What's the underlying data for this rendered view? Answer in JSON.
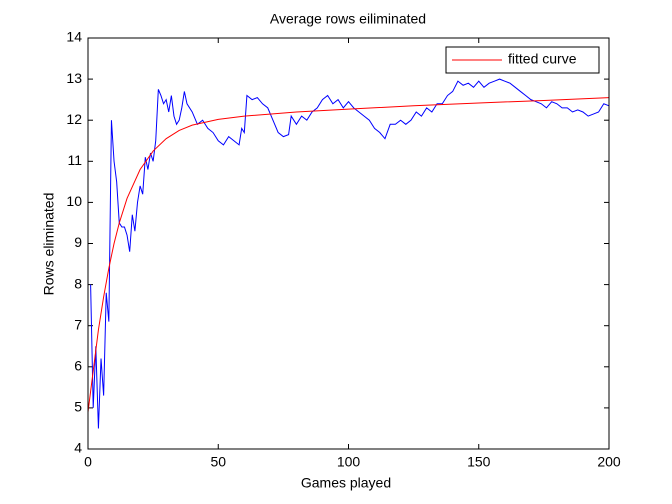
{
  "chart_data": {
    "type": "line",
    "title": "Average rows eiliminated",
    "x_label": "Games played",
    "y_label": "Rows eliminated",
    "xlim": [
      0,
      200
    ],
    "xticks": [
      0,
      50,
      100,
      150,
      200
    ],
    "ylim": [
      4,
      14
    ],
    "yticks": [
      4,
      5,
      6,
      7,
      8,
      9,
      10,
      11,
      12,
      13,
      14
    ],
    "grid": false,
    "legend": "upper right",
    "series": [
      {
        "color": "#0000ff",
        "x": [
          1,
          2,
          3,
          4,
          5,
          6,
          7,
          8,
          9,
          10,
          11,
          12,
          13,
          14,
          15,
          16,
          17,
          18,
          19,
          20,
          21,
          22,
          23,
          24,
          25,
          26,
          27,
          28,
          29,
          30,
          31,
          32,
          33,
          34,
          35,
          36,
          37,
          38,
          40,
          42,
          44,
          46,
          48,
          50,
          52,
          54,
          56,
          58,
          59,
          60,
          61,
          63,
          65,
          67,
          69,
          71,
          73,
          75,
          77,
          78,
          80,
          82,
          84,
          86,
          88,
          90,
          92,
          94,
          96,
          98,
          100,
          102,
          104,
          106,
          108,
          110,
          112,
          114,
          116,
          118,
          120,
          122,
          124,
          126,
          128,
          130,
          132,
          134,
          136,
          138,
          140,
          142,
          144,
          146,
          148,
          150,
          152,
          154,
          156,
          158,
          160,
          162,
          164,
          166,
          168,
          170,
          172,
          174,
          176,
          178,
          180,
          182,
          184,
          186,
          188,
          190,
          192,
          194,
          196,
          198,
          200
        ],
        "values": [
          8.0,
          5.0,
          6.5,
          4.5,
          6.2,
          5.3,
          7.8,
          7.1,
          12.0,
          11.0,
          10.5,
          9.5,
          9.4,
          9.4,
          9.2,
          8.8,
          9.7,
          9.3,
          10.0,
          10.4,
          10.2,
          11.1,
          10.8,
          11.2,
          11.0,
          11.5,
          12.75,
          12.6,
          12.4,
          12.5,
          12.2,
          12.6,
          12.1,
          11.9,
          12.0,
          12.3,
          12.7,
          12.4,
          12.2,
          11.9,
          12.0,
          11.8,
          11.7,
          11.5,
          11.4,
          11.6,
          11.5,
          11.4,
          11.8,
          11.7,
          12.6,
          12.5,
          12.55,
          12.4,
          12.3,
          12.0,
          11.7,
          11.6,
          11.65,
          12.1,
          11.9,
          12.1,
          12.0,
          12.2,
          12.3,
          12.5,
          12.6,
          12.4,
          12.5,
          12.3,
          12.45,
          12.3,
          12.2,
          12.1,
          12.0,
          11.8,
          11.7,
          11.55,
          11.9,
          11.9,
          12.0,
          11.9,
          12.0,
          12.2,
          12.1,
          12.3,
          12.2,
          12.4,
          12.4,
          12.6,
          12.7,
          12.95,
          12.85,
          12.9,
          12.8,
          12.95,
          12.8,
          12.9,
          12.95,
          13.0,
          12.95,
          12.9,
          12.8,
          12.7,
          12.6,
          12.5,
          12.45,
          12.4,
          12.3,
          12.45,
          12.4,
          12.3,
          12.3,
          12.2,
          12.25,
          12.2,
          12.1,
          12.15,
          12.2,
          12.4,
          12.35
        ]
      },
      {
        "name": "fitted curve",
        "color": "#ff0000",
        "x": [
          0,
          2,
          4,
          6,
          8,
          10,
          12,
          15,
          20,
          25,
          30,
          35,
          40,
          50,
          60,
          80,
          100,
          125,
          150,
          175,
          200
        ],
        "values": [
          4.9,
          5.9,
          6.9,
          7.7,
          8.4,
          9.0,
          9.5,
          10.1,
          10.8,
          11.25,
          11.55,
          11.75,
          11.88,
          12.02,
          12.1,
          12.2,
          12.27,
          12.35,
          12.42,
          12.48,
          12.55
        ]
      }
    ]
  }
}
